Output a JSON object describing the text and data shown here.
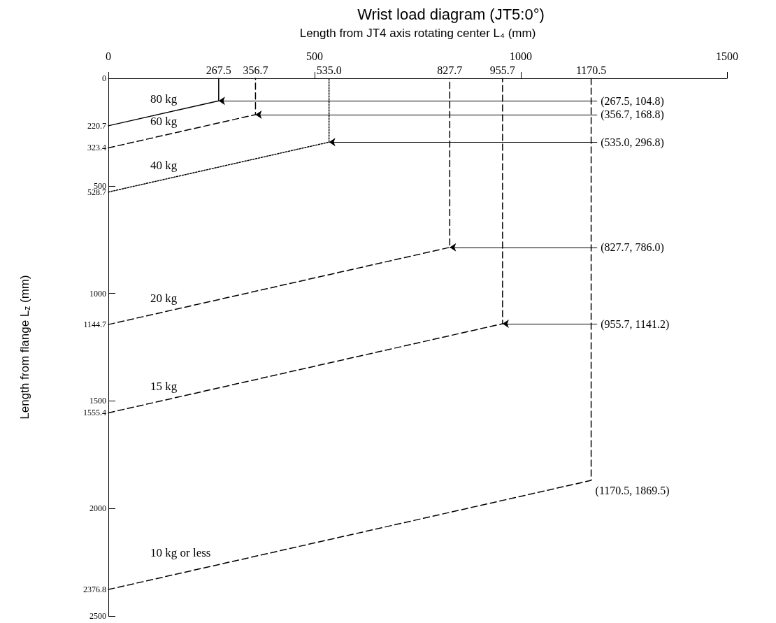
{
  "chart_data": {
    "type": "line",
    "title": "Wrist load diagram (JT5:0°)",
    "xlabel": "Length from JT4 axis rotating center L₄ (mm)",
    "ylabel": "Length from flange L$_{z}$ (mm)",
    "xlim": [
      0,
      1500
    ],
    "ylim": [
      2500,
      0
    ],
    "xticks": [
      0,
      500,
      1000,
      1500
    ],
    "yticks": [
      0,
      {
        "value": 220.7,
        "label": "220.7"
      },
      {
        "value": 323.4,
        "label": "323.4"
      },
      500,
      {
        "value": 528.7,
        "label": "528.7"
      },
      1000,
      {
        "value": 1144.7,
        "label": "1144.7"
      },
      1500,
      {
        "value": 1555.4,
        "label": "1555.4"
      },
      2000,
      {
        "value": 2376.8,
        "label": "2376.8"
      },
      2500
    ],
    "grid": false,
    "legend": false,
    "marker": "none",
    "series": [
      {
        "name": "80 kg",
        "color": "#000000",
        "line_style": "solid",
        "x": [
          0,
          267.5,
          267.5
        ],
        "values": [
          220.7,
          104.8,
          0
        ]
      },
      {
        "name": "60 kg",
        "color": "#000000",
        "line_style": "dashed",
        "x": [
          0,
          356.7,
          356.7
        ],
        "values": [
          323.4,
          168.8,
          0
        ]
      },
      {
        "name": "40 kg",
        "color": "#000000",
        "line_style": "dotted",
        "x": [
          0,
          535.0,
          535.0
        ],
        "values": [
          528.7,
          296.8,
          0
        ]
      },
      {
        "name": "20 kg",
        "color": "#000000",
        "line_style": "dashed",
        "x": [
          0,
          827.7,
          827.7
        ],
        "values": [
          1144.7,
          786.0,
          0
        ]
      },
      {
        "name": "15 kg",
        "color": "#000000",
        "line_style": "dashed",
        "x": [
          0,
          955.7,
          955.7
        ],
        "values": [
          1555.4,
          1141.2,
          0
        ]
      },
      {
        "name": "10 kg or less",
        "color": "#000000",
        "line_style": "dashed",
        "x": [
          0,
          1170.5,
          1170.5
        ],
        "values": [
          2376.8,
          1869.5,
          0
        ]
      }
    ],
    "annotations": [
      {
        "text": "267.5",
        "x": 267.5,
        "y": 0
      },
      {
        "text": "356.7",
        "x": 356.7,
        "y": 0
      },
      {
        "text": "535.0",
        "x": 535.0,
        "y": 0
      },
      {
        "text": "827.7",
        "x": 827.7,
        "y": 0
      },
      {
        "text": "955.7",
        "x": 955.7,
        "y": 0
      },
      {
        "text": "1170.5",
        "x": 1170.5,
        "y": 0
      },
      {
        "text": "(267.5, 104.8)",
        "x": 267.5,
        "y": 104.8
      },
      {
        "text": "(356.7, 168.8)",
        "x": 356.7,
        "y": 168.8
      },
      {
        "text": "(535.0, 296.8)",
        "x": 535.0,
        "y": 296.8
      },
      {
        "text": "(827.7, 786.0)",
        "x": 827.7,
        "y": 786.0
      },
      {
        "text": "(955.7, 1141.2)",
        "x": 955.7,
        "y": 1141.2
      },
      {
        "text": "(1170.5, 1869.5)",
        "x": 1170.5,
        "y": 1869.5
      }
    ]
  }
}
